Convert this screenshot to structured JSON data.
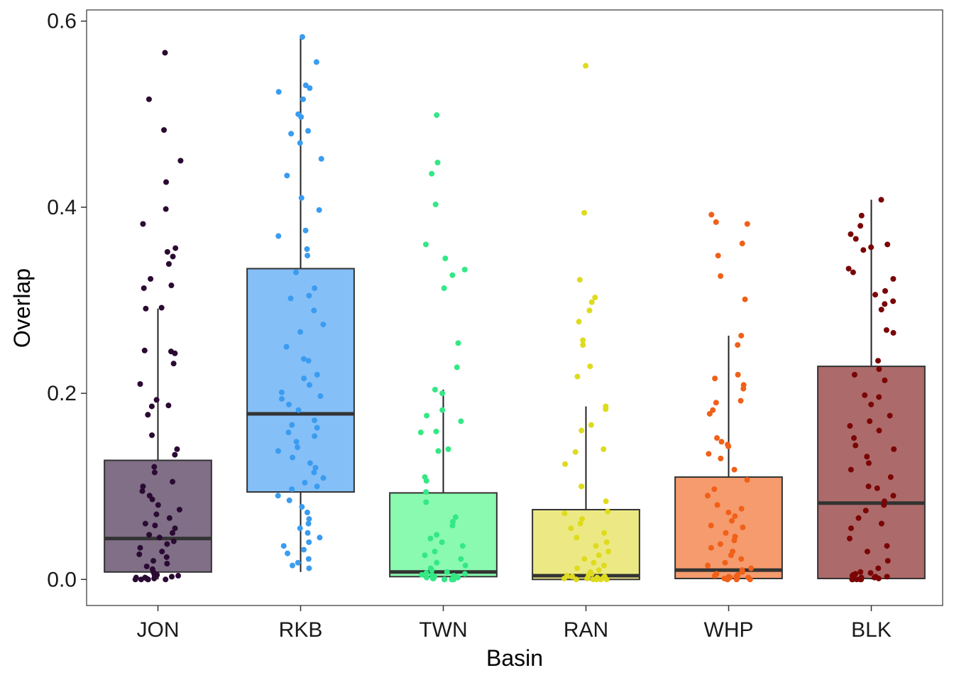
{
  "chart_data": {
    "type": "box",
    "xlabel": "Basin",
    "ylabel": "Overlap",
    "ylim": [
      -0.028,
      0.612
    ],
    "yticks": [
      {
        "value": 0.0,
        "label": "0.0"
      },
      {
        "value": 0.2,
        "label": "0.2"
      },
      {
        "value": 0.4,
        "label": "0.4"
      },
      {
        "value": 0.6,
        "label": "0.6"
      }
    ],
    "grid": false,
    "legend": "none",
    "categories": [
      "JON",
      "RKB",
      "TWN",
      "RAN",
      "WHP",
      "BLK"
    ],
    "boxes": [
      {
        "category": "JON",
        "color": "#2a0a33",
        "fill": "#806f87",
        "whisker_low": 0.0,
        "q1": 0.008,
        "median": 0.044,
        "q3": 0.128,
        "whisker_high": 0.291,
        "points": [
          0.566,
          0.516,
          0.483,
          0.45,
          0.427,
          0.398,
          0.382,
          0.356,
          0.352,
          0.347,
          0.339,
          0.323,
          0.316,
          0.313,
          0.292,
          0.291,
          0.246,
          0.245,
          0.243,
          0.232,
          0.21,
          0.193,
          0.187,
          0.186,
          0.177,
          0.155,
          0.14,
          0.134,
          0.121,
          0.115,
          0.105,
          0.1,
          0.095,
          0.09,
          0.086,
          0.08,
          0.075,
          0.07,
          0.066,
          0.06,
          0.058,
          0.055,
          0.05,
          0.048,
          0.045,
          0.041,
          0.038,
          0.034,
          0.03,
          0.027,
          0.024,
          0.02,
          0.017,
          0.014,
          0.011,
          0.008,
          0.006,
          0.004,
          0.003,
          0.002,
          0.001,
          0.0,
          0.0,
          0.0,
          0.0,
          0.0,
          0.001,
          0.002,
          0.003,
          0.005
        ]
      },
      {
        "category": "RKB",
        "color": "#3a9cf0",
        "fill": "#85bff7",
        "whisker_low": 0.008,
        "q1": 0.094,
        "median": 0.178,
        "q3": 0.334,
        "whisker_high": 0.584,
        "points": [
          0.583,
          0.556,
          0.531,
          0.528,
          0.524,
          0.516,
          0.5,
          0.497,
          0.482,
          0.479,
          0.469,
          0.452,
          0.434,
          0.41,
          0.397,
          0.375,
          0.369,
          0.355,
          0.348,
          0.33,
          0.313,
          0.305,
          0.302,
          0.289,
          0.274,
          0.266,
          0.25,
          0.237,
          0.235,
          0.22,
          0.216,
          0.209,
          0.201,
          0.197,
          0.194,
          0.188,
          0.182,
          0.171,
          0.166,
          0.163,
          0.158,
          0.154,
          0.148,
          0.142,
          0.138,
          0.131,
          0.125,
          0.12,
          0.115,
          0.109,
          0.104,
          0.1,
          0.097,
          0.09,
          0.085,
          0.078,
          0.072,
          0.065,
          0.06,
          0.055,
          0.05,
          0.045,
          0.04,
          0.036,
          0.032,
          0.028,
          0.022,
          0.018,
          0.015,
          0.012
        ]
      },
      {
        "category": "TWN",
        "color": "#33e885",
        "fill": "#8afab0",
        "whisker_low": 0.0,
        "q1": 0.003,
        "median": 0.008,
        "q3": 0.093,
        "whisker_high": 0.204,
        "points": [
          0.499,
          0.448,
          0.436,
          0.403,
          0.36,
          0.345,
          0.333,
          0.327,
          0.313,
          0.254,
          0.228,
          0.204,
          0.2,
          0.182,
          0.176,
          0.17,
          0.159,
          0.158,
          0.14,
          0.138,
          0.11,
          0.106,
          0.094,
          0.083,
          0.067,
          0.062,
          0.058,
          0.048,
          0.044,
          0.04,
          0.036,
          0.03,
          0.026,
          0.022,
          0.018,
          0.015,
          0.012,
          0.01,
          0.008,
          0.006,
          0.005,
          0.004,
          0.003,
          0.002,
          0.001,
          0.0,
          0.0,
          0.0,
          0.0,
          0.0,
          0.001,
          0.002,
          0.003,
          0.005,
          0.007
        ]
      },
      {
        "category": "RAN",
        "color": "#dedb1e",
        "fill": "#ece984",
        "whisker_low": 0.0,
        "q1": 0.0,
        "median": 0.004,
        "q3": 0.075,
        "whisker_high": 0.186,
        "points": [
          0.552,
          0.394,
          0.322,
          0.303,
          0.298,
          0.289,
          0.277,
          0.257,
          0.252,
          0.229,
          0.218,
          0.186,
          0.183,
          0.166,
          0.16,
          0.14,
          0.137,
          0.124,
          0.1,
          0.1,
          0.084,
          0.073,
          0.071,
          0.065,
          0.06,
          0.055,
          0.05,
          0.045,
          0.04,
          0.036,
          0.03,
          0.026,
          0.022,
          0.018,
          0.015,
          0.012,
          0.01,
          0.008,
          0.006,
          0.005,
          0.004,
          0.003,
          0.002,
          0.001,
          0.0,
          0.0,
          0.0,
          0.0,
          0.0,
          0.001,
          0.002,
          0.003
        ]
      },
      {
        "category": "WHP",
        "color": "#f06018",
        "fill": "#f59b6e",
        "whisker_low": 0.0,
        "q1": 0.001,
        "median": 0.01,
        "q3": 0.11,
        "whisker_high": 0.262,
        "points": [
          0.392,
          0.384,
          0.382,
          0.361,
          0.348,
          0.326,
          0.301,
          0.262,
          0.252,
          0.22,
          0.216,
          0.209,
          0.205,
          0.192,
          0.19,
          0.182,
          0.178,
          0.152,
          0.148,
          0.145,
          0.143,
          0.135,
          0.13,
          0.118,
          0.107,
          0.097,
          0.09,
          0.08,
          0.076,
          0.072,
          0.068,
          0.063,
          0.058,
          0.056,
          0.05,
          0.046,
          0.042,
          0.038,
          0.034,
          0.03,
          0.026,
          0.022,
          0.018,
          0.015,
          0.012,
          0.01,
          0.008,
          0.006,
          0.004,
          0.003,
          0.002,
          0.001,
          0.0,
          0.0,
          0.0,
          0.0,
          0.001,
          0.002,
          0.003,
          0.005
        ]
      },
      {
        "category": "BLK",
        "color": "#7a0505",
        "fill": "#ad6a6a",
        "whisker_low": 0.0,
        "q1": 0.001,
        "median": 0.082,
        "q3": 0.229,
        "whisker_high": 0.408,
        "points": [
          0.408,
          0.391,
          0.38,
          0.371,
          0.366,
          0.36,
          0.357,
          0.354,
          0.334,
          0.33,
          0.323,
          0.31,
          0.306,
          0.299,
          0.296,
          0.29,
          0.268,
          0.265,
          0.235,
          0.226,
          0.22,
          0.214,
          0.198,
          0.196,
          0.188,
          0.176,
          0.17,
          0.165,
          0.16,
          0.152,
          0.144,
          0.14,
          0.132,
          0.125,
          0.118,
          0.11,
          0.1,
          0.098,
          0.09,
          0.084,
          0.08,
          0.074,
          0.066,
          0.06,
          0.055,
          0.044,
          0.036,
          0.03,
          0.02,
          0.012,
          0.008,
          0.006,
          0.004,
          0.003,
          0.002,
          0.001,
          0.0,
          0.0,
          0.0,
          0.0,
          0.0,
          0.001,
          0.002,
          0.003,
          0.005,
          0.007
        ]
      }
    ]
  }
}
